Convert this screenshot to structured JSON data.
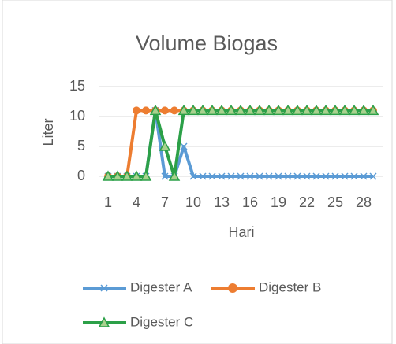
{
  "chart_data": {
    "type": "line",
    "title": "Volume Biogas",
    "x_label": "Hari",
    "y_label": "Liter",
    "categories": [
      "1",
      null,
      null,
      "4",
      null,
      null,
      "7",
      null,
      null,
      "10",
      null,
      null,
      "13",
      null,
      null,
      "16",
      null,
      null,
      "19",
      null,
      null,
      "22",
      null,
      null,
      "25",
      null,
      null,
      "28",
      null
    ],
    "series": [
      {
        "name": "Digester A",
        "color": "#5b9bd5",
        "marker": "x",
        "values": [
          0,
          0,
          0,
          0,
          0,
          11,
          0,
          0,
          5,
          0,
          0,
          0,
          0,
          0,
          0,
          0,
          0,
          0,
          0,
          0,
          0,
          0,
          0,
          0,
          0,
          0,
          0,
          0,
          0
        ]
      },
      {
        "name": "Digester B",
        "color": "#ed7d31",
        "marker": "circle",
        "values": [
          0,
          0,
          0,
          11,
          11,
          11,
          11,
          11,
          11,
          11,
          11,
          11,
          11,
          11,
          11,
          11,
          11,
          11,
          11,
          11,
          11,
          11,
          11,
          11,
          11,
          11,
          11,
          11,
          11
        ]
      },
      {
        "name": "Digester C",
        "color": "#2ca048",
        "marker": "triangle",
        "values": [
          0,
          0,
          0,
          0,
          0,
          11,
          5,
          0,
          11,
          11,
          11,
          11,
          11,
          11,
          11,
          11,
          11,
          11,
          11,
          11,
          11,
          11,
          11,
          11,
          11,
          11,
          11,
          11,
          11
        ]
      }
    ],
    "ylim": [
      0,
      15
    ],
    "yticks": [
      0,
      5,
      10,
      15
    ],
    "grid": true,
    "legend": "bottom"
  }
}
